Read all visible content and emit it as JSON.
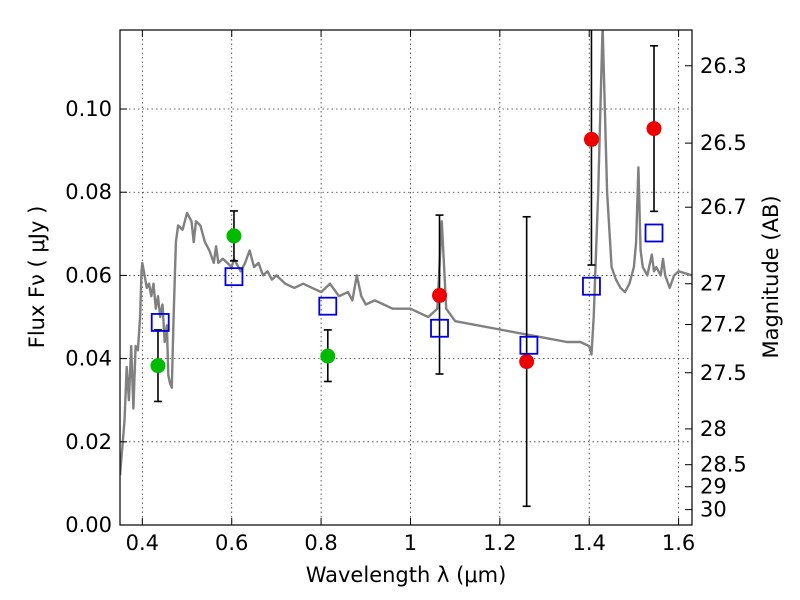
{
  "chart_data": {
    "type": "scatter",
    "xlabel": "Wavelength  λ (μm)",
    "ylabel": "Flux  Fν  ( μJy )",
    "y2label": "Magnitude (AB)",
    "xlim": [
      0.35,
      1.63
    ],
    "ylim": [
      0.0,
      0.119
    ],
    "xticks": [
      0.4,
      0.6,
      0.8,
      1.0,
      1.2,
      1.4,
      1.6
    ],
    "xtick_labels": [
      "0.4",
      "0.6",
      "0.8",
      "1",
      "1.2",
      "1.4",
      "1.6"
    ],
    "yticks": [
      0.0,
      0.02,
      0.04,
      0.06,
      0.08,
      0.1
    ],
    "ytick_labels": [
      "0.00",
      "0.02",
      "0.04",
      "0.06",
      "0.08",
      "0.10"
    ],
    "right_ticks": [
      {
        "label": "26.3",
        "flux": 0.1104
      },
      {
        "label": "26.5",
        "flux": 0.0918
      },
      {
        "label": "26.7",
        "flux": 0.0764
      },
      {
        "label": "27",
        "flux": 0.058
      },
      {
        "label": "27.2",
        "flux": 0.0482
      },
      {
        "label": "27.5",
        "flux": 0.0366
      },
      {
        "label": "28",
        "flux": 0.0231
      },
      {
        "label": "28.5",
        "flux": 0.0145
      },
      {
        "label": "29",
        "flux": 0.0092
      },
      {
        "label": "30",
        "flux": 0.0037
      }
    ],
    "grid": true,
    "series": [
      {
        "kind": "spectrum-line",
        "color": "#808080",
        "points": [
          [
            0.35,
            0.012
          ],
          [
            0.36,
            0.025
          ],
          [
            0.365,
            0.038
          ],
          [
            0.37,
            0.03
          ],
          [
            0.375,
            0.043
          ],
          [
            0.38,
            0.028
          ],
          [
            0.385,
            0.043
          ],
          [
            0.39,
            0.042
          ],
          [
            0.395,
            0.05
          ],
          [
            0.398,
            0.061
          ],
          [
            0.4,
            0.063
          ],
          [
            0.405,
            0.06
          ],
          [
            0.41,
            0.057
          ],
          [
            0.415,
            0.058
          ],
          [
            0.42,
            0.055
          ],
          [
            0.425,
            0.058
          ],
          [
            0.43,
            0.052
          ],
          [
            0.435,
            0.055
          ],
          [
            0.44,
            0.05
          ],
          [
            0.445,
            0.053
          ],
          [
            0.45,
            0.044
          ],
          [
            0.455,
            0.048
          ],
          [
            0.458,
            0.036
          ],
          [
            0.462,
            0.034
          ],
          [
            0.466,
            0.033
          ],
          [
            0.47,
            0.05
          ],
          [
            0.475,
            0.068
          ],
          [
            0.48,
            0.072
          ],
          [
            0.49,
            0.071
          ],
          [
            0.5,
            0.075
          ],
          [
            0.51,
            0.073
          ],
          [
            0.515,
            0.068
          ],
          [
            0.52,
            0.073
          ],
          [
            0.53,
            0.072
          ],
          [
            0.54,
            0.068
          ],
          [
            0.55,
            0.066
          ],
          [
            0.56,
            0.063
          ],
          [
            0.565,
            0.067
          ],
          [
            0.57,
            0.063
          ],
          [
            0.58,
            0.064
          ],
          [
            0.59,
            0.063
          ],
          [
            0.6,
            0.062
          ],
          [
            0.605,
            0.064
          ],
          [
            0.61,
            0.063
          ],
          [
            0.62,
            0.061
          ],
          [
            0.63,
            0.063
          ],
          [
            0.64,
            0.066
          ],
          [
            0.65,
            0.062
          ],
          [
            0.66,
            0.063
          ],
          [
            0.67,
            0.06
          ],
          [
            0.68,
            0.061
          ],
          [
            0.69,
            0.059
          ],
          [
            0.7,
            0.06
          ],
          [
            0.72,
            0.058
          ],
          [
            0.74,
            0.057
          ],
          [
            0.76,
            0.058
          ],
          [
            0.78,
            0.057
          ],
          [
            0.8,
            0.056
          ],
          [
            0.82,
            0.058
          ],
          [
            0.84,
            0.055
          ],
          [
            0.86,
            0.056
          ],
          [
            0.87,
            0.054
          ],
          [
            0.88,
            0.06
          ],
          [
            0.89,
            0.055
          ],
          [
            0.9,
            0.053
          ],
          [
            0.92,
            0.054
          ],
          [
            0.94,
            0.053
          ],
          [
            0.96,
            0.052
          ],
          [
            0.98,
            0.052
          ],
          [
            1.0,
            0.052
          ],
          [
            1.02,
            0.051
          ],
          [
            1.04,
            0.05
          ],
          [
            1.06,
            0.052
          ],
          [
            1.07,
            0.073
          ],
          [
            1.08,
            0.052
          ],
          [
            1.1,
            0.049
          ],
          [
            1.15,
            0.048
          ],
          [
            1.2,
            0.047
          ],
          [
            1.25,
            0.046
          ],
          [
            1.3,
            0.045
          ],
          [
            1.35,
            0.044
          ],
          [
            1.38,
            0.044
          ],
          [
            1.4,
            0.043
          ],
          [
            1.405,
            0.041
          ],
          [
            1.41,
            0.05
          ],
          [
            1.42,
            0.08
          ],
          [
            1.43,
            0.12
          ],
          [
            1.44,
            0.08
          ],
          [
            1.45,
            0.062
          ],
          [
            1.46,
            0.059
          ],
          [
            1.47,
            0.057
          ],
          [
            1.48,
            0.056
          ],
          [
            1.49,
            0.058
          ],
          [
            1.5,
            0.062
          ],
          [
            1.505,
            0.068
          ],
          [
            1.51,
            0.086
          ],
          [
            1.515,
            0.066
          ],
          [
            1.52,
            0.062
          ],
          [
            1.53,
            0.06
          ],
          [
            1.54,
            0.065
          ],
          [
            1.545,
            0.061
          ],
          [
            1.55,
            0.062
          ],
          [
            1.56,
            0.06
          ],
          [
            1.565,
            0.064
          ],
          [
            1.57,
            0.06
          ],
          [
            1.58,
            0.057
          ],
          [
            1.59,
            0.06
          ],
          [
            1.6,
            0.061
          ],
          [
            1.63,
            0.06
          ]
        ]
      },
      {
        "kind": "points",
        "color": "#00bb00",
        "marker": "circle",
        "points": [
          {
            "x": 0.435,
            "y": 0.0383,
            "err_lo": 0.0297,
            "err_hi": 0.0469
          },
          {
            "x": 0.605,
            "y": 0.0695,
            "err_lo": 0.0635,
            "err_hi": 0.0755
          },
          {
            "x": 0.815,
            "y": 0.0406,
            "err_lo": 0.0345,
            "err_hi": 0.0469
          }
        ]
      },
      {
        "kind": "points",
        "color": "#ee0000",
        "marker": "circle",
        "points": [
          {
            "x": 1.065,
            "y": 0.0552,
            "err_lo": 0.0363,
            "err_hi": 0.0745
          },
          {
            "x": 1.26,
            "y": 0.0393,
            "err_lo": 0.0045,
            "err_hi": 0.0741
          },
          {
            "x": 1.405,
            "y": 0.0927,
            "err_lo": 0.0625,
            "err_hi": 0.119
          },
          {
            "x": 1.545,
            "y": 0.0953,
            "err_lo": 0.0754,
            "err_hi": 0.1152
          }
        ]
      },
      {
        "kind": "points",
        "color": "#0000dd",
        "marker": "open-square",
        "points": [
          {
            "x": 0.44,
            "y": 0.0487
          },
          {
            "x": 0.605,
            "y": 0.0597
          },
          {
            "x": 0.815,
            "y": 0.0526
          },
          {
            "x": 1.065,
            "y": 0.0473
          },
          {
            "x": 1.265,
            "y": 0.0432
          },
          {
            "x": 1.405,
            "y": 0.0574
          },
          {
            "x": 1.545,
            "y": 0.0702
          }
        ]
      }
    ]
  }
}
